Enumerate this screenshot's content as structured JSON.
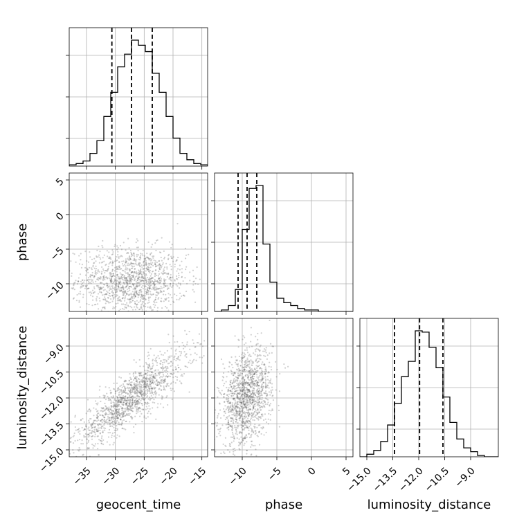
{
  "chart_data": {
    "type": "corner",
    "parameters": [
      {
        "name": "geocent_time",
        "label": "geocent_time",
        "range": [
          -38,
          -14
        ],
        "ticks": [
          -35,
          -30,
          -25,
          -20,
          -15
        ],
        "tick_labels": [
          "−35",
          "−30",
          "−25",
          "−20",
          "−15"
        ],
        "median": -27.2,
        "quantiles": [
          -30.6,
          -23.6
        ],
        "hist_edges_range": [
          -38,
          -14
        ],
        "hist_counts": [
          1,
          2,
          4,
          10,
          20,
          39,
          58,
          78,
          88,
          99,
          95,
          90,
          73,
          58,
          39,
          22,
          10,
          5,
          2,
          1
        ]
      },
      {
        "name": "phase",
        "label": "phase",
        "range": [
          -14,
          6
        ],
        "ticks": [
          -10,
          -5,
          0,
          5
        ],
        "tick_labels": [
          "−10",
          "−5",
          "0",
          "5"
        ],
        "median": -9.3,
        "quantiles": [
          -10.6,
          -7.9
        ],
        "hist_edges_range": [
          -14,
          6
        ],
        "hist_counts": [
          0,
          1,
          4,
          15,
          56,
          84,
          86,
          46,
          20,
          9,
          6,
          4,
          2,
          1,
          1,
          0,
          0,
          0,
          0,
          0
        ]
      },
      {
        "name": "luminosity_distance",
        "label": "luminosity_distance",
        "range": [
          -15.4,
          -7.4
        ],
        "ticks": [
          -15.0,
          -13.5,
          -12.0,
          -10.5,
          -9.0
        ],
        "tick_labels": [
          "−15.0",
          "−13.5",
          "−12.0",
          "−10.5",
          "−9.0"
        ],
        "median": -11.95,
        "quantiles": [
          -13.4,
          -10.6
        ],
        "hist_edges_range": [
          -15.4,
          -7.4
        ],
        "hist_counts": [
          0,
          2,
          5,
          12,
          25,
          42,
          63,
          75,
          99,
          98,
          86,
          70,
          47,
          27,
          14,
          7,
          4,
          1,
          0,
          0
        ]
      }
    ],
    "density_peaks": [
      {
        "x": "geocent_time",
        "y": "phase",
        "mean": [
          -27.2,
          -9.6
        ],
        "sd": [
          4.2,
          2.1
        ],
        "rho": 0.0
      },
      {
        "x": "geocent_time",
        "y": "luminosity_distance",
        "mean": [
          -27.2,
          -12.0
        ],
        "sd": [
          4.2,
          1.2
        ],
        "rho": 0.85
      },
      {
        "x": "phase",
        "y": "luminosity_distance",
        "mean": [
          -9.4,
          -12.0
        ],
        "sd": [
          1.6,
          1.2
        ],
        "rho": 0.3
      }
    ],
    "grid": true
  }
}
